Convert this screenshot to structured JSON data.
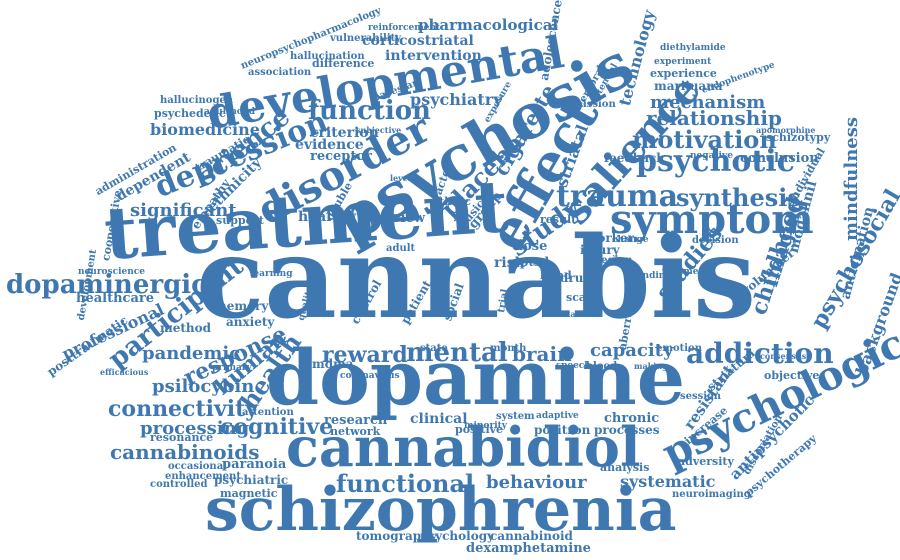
{
  "words": [
    "cannabis",
    "dopamine",
    "treatment",
    "psychosis",
    "schizophrenia",
    "cannabidiol",
    "developmental",
    "effect",
    "disorder",
    "symptom",
    "salience",
    "psychological",
    "depression",
    "trauma",
    "psychotic",
    "mental",
    "participant",
    "function",
    "science",
    "addiction",
    "motivation",
    "dopaminergic",
    "functional",
    "study",
    "placebo",
    "psychosocial",
    "synthesis",
    "human",
    "connectivity",
    "response",
    "health",
    "relationship",
    "cigarette",
    "mindfulness",
    "childhood",
    "reward",
    "brain",
    "capacity",
    "studies",
    "mechanism",
    "cognitive",
    "significant",
    "cannabinoids",
    "psilocybin",
    "processing",
    "imaging",
    "psychiatry",
    "pharmacological",
    "corticostriatal",
    "intervention",
    "biomedicine",
    "technology",
    "adolescence",
    "striatal",
    "anticipation",
    "background",
    "resistant",
    "antipsychotic",
    "behaviour",
    "systematic",
    "professional",
    "pandemic",
    "healthy",
    "criterion",
    "evidence",
    "receptor",
    "review",
    "healthcare",
    "dependent",
    "ethnicity",
    "empathy",
    "support",
    "memory",
    "anxiety",
    "method",
    "posttraumatic",
    "paranoia",
    "psychiatric",
    "enhancement",
    "magnetic",
    "occasional",
    "controlled",
    "resonance",
    "attention",
    "network",
    "research",
    "clinical",
    "positive",
    "chronic",
    "processes",
    "tomography",
    "psychology",
    "cannabinoid",
    "dexamphetamine",
    "analysis",
    "adversity",
    "neuroimaging",
    "psychotherapy",
    "dissociation",
    "objective",
    "striatum",
    "increase",
    "volunteer",
    "modafinil",
    "individual",
    "conclusion",
    "schizotypy",
    "apomorphine",
    "negative",
    "feedback",
    "experience",
    "marijuana",
    "endophenotype",
    "experiment",
    "diethylamide",
    "vulnerability",
    "difference",
    "hallucination",
    "association",
    "reinforcement",
    "neuropsychopharmacology",
    "bayesian",
    "exposure",
    "subjective",
    "traumatic",
    "administration",
    "psychedelic",
    "hallucinogen",
    "adulthood",
    "development",
    "cooperative",
    "neuroscience",
    "primary",
    "efficacious",
    "mdma",
    "coronavirus",
    "emotion",
    "session",
    "consensus",
    "aberrant",
    "blood",
    "speech",
    "month",
    "ethnic",
    "double",
    "factor",
    "group",
    "music",
    "dose",
    "injury",
    "region",
    "worker",
    "risk",
    "ptsd",
    "drug",
    "result",
    "state",
    "trial",
    "blind",
    "scale",
    "patient",
    "social",
    "control",
    "qualitative",
    "adult",
    "change",
    "volume",
    "decision",
    "emission",
    "cerebral",
    "potential",
    "ketamine",
    "learning",
    "finding",
    "minority",
    "system",
    "adaptive",
    "positron",
    "making",
    "level"
  ]
}
